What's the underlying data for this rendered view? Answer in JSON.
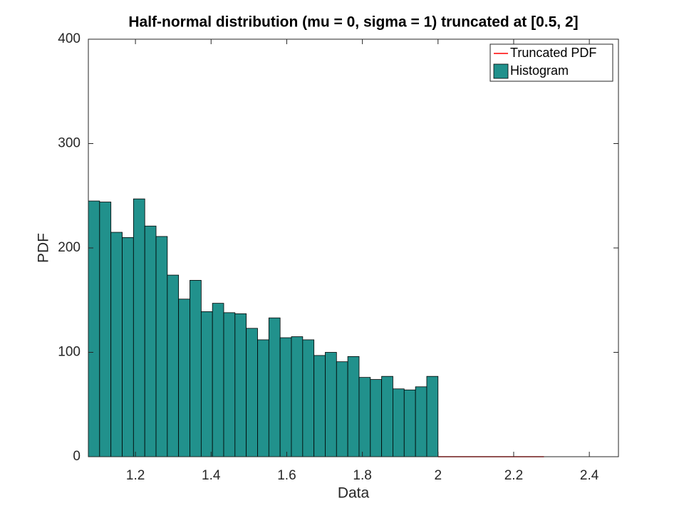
{
  "chart_data": {
    "type": "histogram",
    "title": "Half-normal distribution (mu = 0, sigma = 1) truncated at [0.5, 2]",
    "xlabel": "Data",
    "ylabel": "PDF",
    "bins": [
      1.0755,
      1.1053,
      1.1352,
      1.165,
      1.1948,
      1.2247,
      1.2545,
      1.2843,
      1.3141,
      1.3439,
      1.3738,
      1.4036,
      1.4334,
      1.4632,
      1.493,
      1.5229,
      1.5527,
      1.5825,
      1.6123,
      1.6422,
      1.672,
      1.7018,
      1.7316,
      1.7614,
      1.7913,
      1.8211,
      1.8509,
      1.8807,
      1.9105,
      1.9404,
      1.9702,
      2.0
    ],
    "series": [
      {
        "name": "Truncated PDF",
        "type": "line",
        "color": "#ff0000",
        "x": [
          2.0,
          2.28
        ],
        "values": [
          0,
          0
        ]
      },
      {
        "name": "Histogram",
        "type": "histogram",
        "color": "#21918c",
        "values": [
          245,
          244,
          215,
          210,
          247,
          221,
          211,
          174,
          151,
          169,
          139,
          147,
          138,
          137,
          123,
          112,
          133,
          114,
          115,
          112,
          97,
          100,
          91,
          96,
          76,
          74,
          77,
          65,
          64,
          67,
          77
        ]
      }
    ],
    "xlim": [
      1.0755,
      2.477
    ],
    "ylim": [
      0,
      400
    ],
    "xticks": [
      1.2,
      1.4,
      1.6,
      1.8,
      2,
      2.2,
      2.4
    ],
    "yticks": [
      0,
      100,
      200,
      300,
      400
    ],
    "legend": "upper right"
  }
}
